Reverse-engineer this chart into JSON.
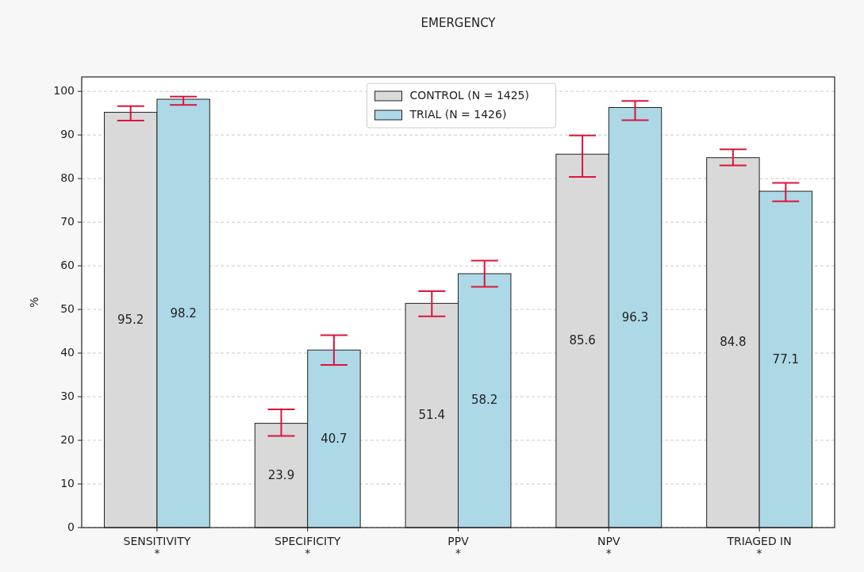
{
  "chart_data": {
    "type": "bar",
    "title": "EMERGENCY",
    "ylabel": "%",
    "categories": [
      "SENSITIVITY\n*",
      "SPECIFICITY\n*",
      "PPV\n*",
      "NPV\n*",
      "TRIAGED IN\n*"
    ],
    "series": [
      {
        "name": "CONTROL (N = 1425)",
        "color": "#d9d9d9",
        "values": [
          95.2,
          23.9,
          51.4,
          85.6,
          84.8
        ],
        "errors": [
          [
            93.3,
            96.6
          ],
          [
            21.0,
            27.1
          ],
          [
            48.4,
            54.2
          ],
          [
            80.4,
            89.9
          ],
          [
            83.0,
            86.7
          ]
        ]
      },
      {
        "name": "TRIAL (N = 1426)",
        "color": "#add8e6",
        "values": [
          98.2,
          40.7,
          58.2,
          96.3,
          77.1
        ],
        "errors": [
          [
            96.9,
            98.8
          ],
          [
            37.3,
            44.1
          ],
          [
            55.2,
            61.2
          ],
          [
            93.4,
            97.8
          ],
          [
            74.8,
            79.0
          ]
        ]
      }
    ],
    "ylim": [
      0,
      103.3
    ],
    "yticks": [
      0,
      10,
      20,
      30,
      40,
      50,
      60,
      70,
      80,
      90,
      100
    ],
    "grid": "y",
    "legend": "top",
    "data_labels": true
  }
}
